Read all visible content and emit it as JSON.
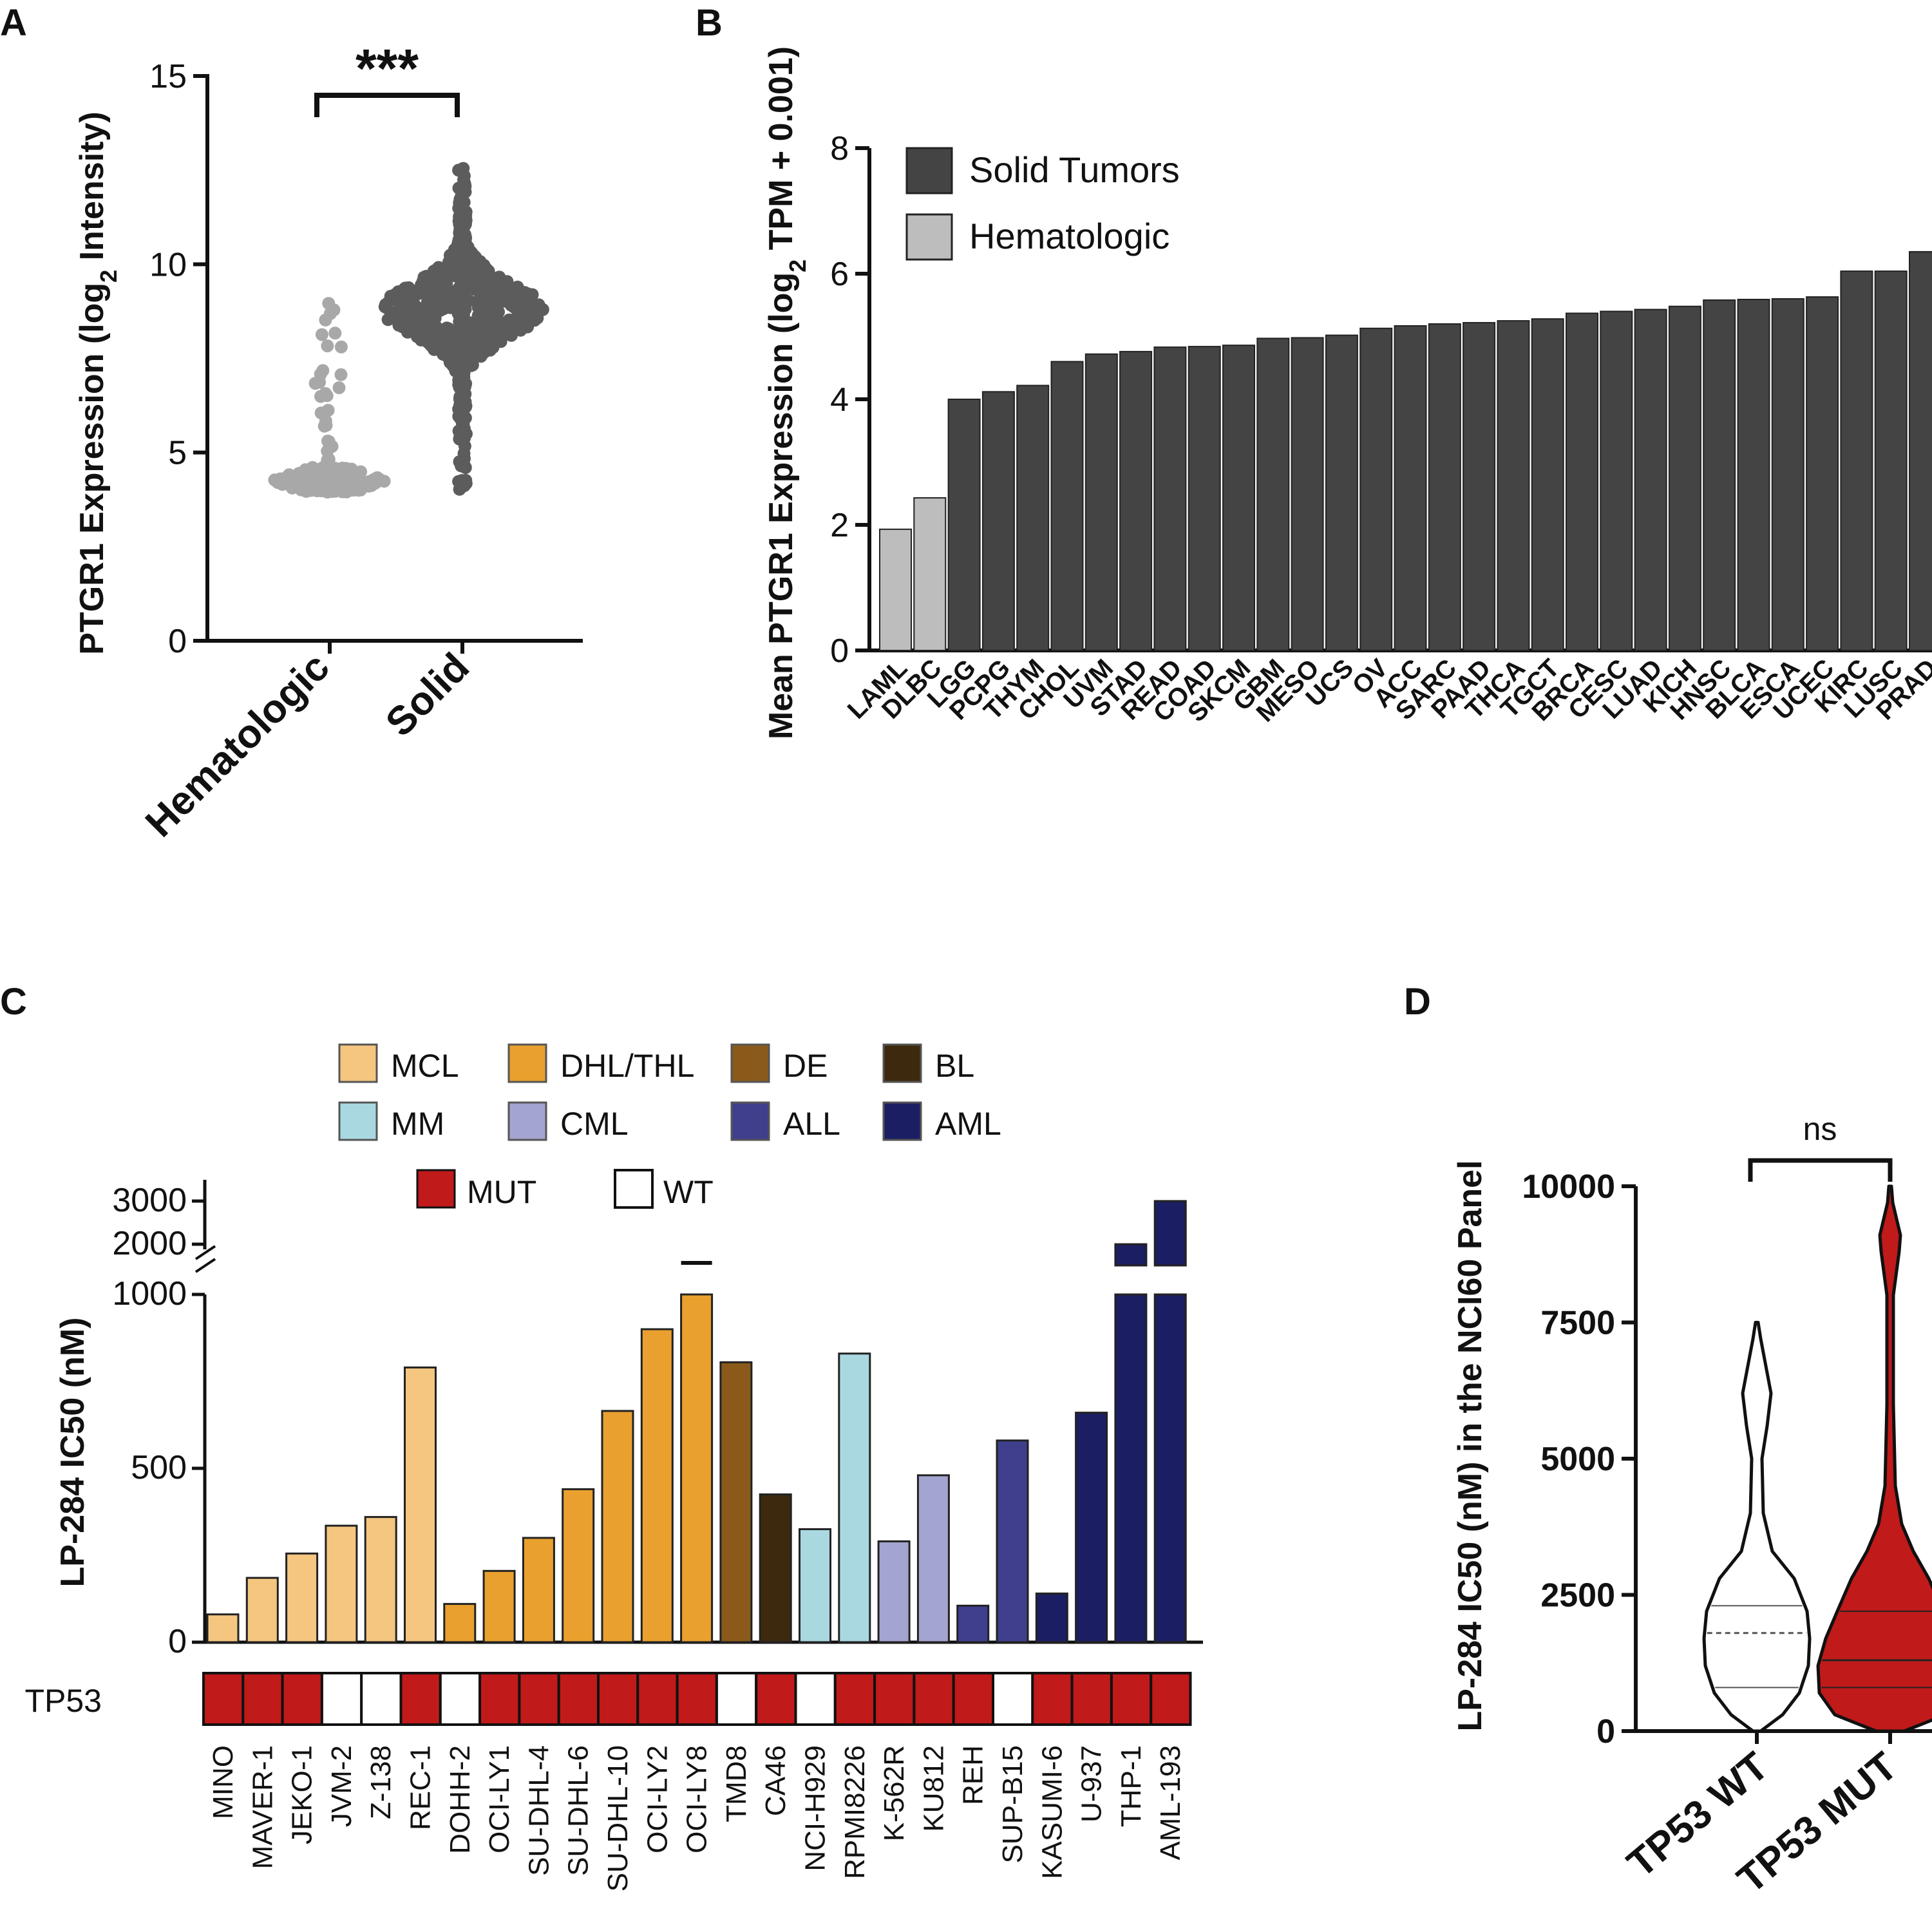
{
  "panels": {
    "A": {
      "label": "A"
    },
    "B": {
      "label": "B"
    },
    "C": {
      "label": "C"
    },
    "D": {
      "label": "D"
    }
  },
  "colors": {
    "hematologic_A": "#a8a8a8",
    "solid_A": "#5c5c5c",
    "solid_B": "#444444",
    "hematologic_B": "#bdbdbd",
    "MCL": "#f5c680",
    "DHL/THL": "#e9a02e",
    "DE": "#8b5a1a",
    "BL": "#3d2a0e",
    "MM": "#a9d8e0",
    "CML": "#a4a4d0",
    "ALL": "#3f3f8e",
    "AML": "#1c1e63",
    "MUT": "#c01a1a",
    "WT": "#ffffff"
  },
  "chart_data": [
    {
      "panel": "A",
      "type": "scatter",
      "title": "",
      "ylabel": "PTGR1 Expression (log",
      "ylabel_sub": "2",
      "ylabel_end": " Intensity)",
      "ylim": [
        0,
        15
      ],
      "yticks": [
        "0",
        "5",
        "10",
        "15"
      ],
      "categories": [
        "Hematologic",
        "Solid"
      ],
      "significance": "***",
      "series": [
        {
          "name": "Hematologic",
          "median": 4.3,
          "min": 3.9,
          "max": 9.4
        },
        {
          "name": "Solid",
          "median": 8.8,
          "min": 3.9,
          "max": 12.6
        }
      ]
    },
    {
      "panel": "B",
      "type": "bar",
      "ylabel": "Mean PTGR1 Expression (log",
      "ylabel_sub": "2",
      "ylabel_end": " TPM + 0.001)",
      "ylim": [
        0,
        8
      ],
      "yticks": [
        "0",
        "2",
        "4",
        "6",
        "8"
      ],
      "legend": [
        "Solid Tumors",
        "Hematologic"
      ],
      "categories": [
        "LAML",
        "DLBC",
        "LGG",
        "PCPG",
        "THYM",
        "CHOL",
        "UVM",
        "STAD",
        "READ",
        "COAD",
        "SKCM",
        "GBM",
        "MESO",
        "UCS",
        "OV",
        "ACC",
        "SARC",
        "PAAD",
        "THCA",
        "TGCT",
        "BRCA",
        "CESC",
        "LUAD",
        "KICH",
        "HNSC",
        "BLCA",
        "ESCA",
        "UCEC",
        "KIRC",
        "LUSC",
        "PRAD"
      ],
      "groups": [
        "Hematologic",
        "Hematologic",
        "Solid",
        "Solid",
        "Solid",
        "Solid",
        "Solid",
        "Solid",
        "Solid",
        "Solid",
        "Solid",
        "Solid",
        "Solid",
        "Solid",
        "Solid",
        "Solid",
        "Solid",
        "Solid",
        "Solid",
        "Solid",
        "Solid",
        "Solid",
        "Solid",
        "Solid",
        "Solid",
        "Solid",
        "Solid",
        "Solid",
        "Solid",
        "Solid",
        "Solid"
      ],
      "values": [
        1.93,
        2.43,
        4.0,
        4.12,
        4.22,
        4.6,
        4.72,
        4.76,
        4.83,
        4.84,
        4.86,
        4.97,
        4.98,
        5.02,
        5.13,
        5.17,
        5.2,
        5.22,
        5.25,
        5.28,
        5.37,
        5.4,
        5.43,
        5.48,
        5.58,
        5.59,
        5.6,
        5.63,
        6.04,
        6.04,
        6.35
      ]
    },
    {
      "panel": "C",
      "type": "bar",
      "ylabel": "LP-284 IC50 (nM)",
      "yticks": [
        "0",
        "500",
        "1000",
        "2000",
        "3000"
      ],
      "broken_axis": [
        1000,
        2000
      ],
      "legend": [
        "MCL",
        "DHL/THL",
        "DE",
        "BL",
        "MM",
        "CML",
        "ALL",
        "AML"
      ],
      "tp53_legend": [
        "MUT",
        "WT"
      ],
      "tp53_label": "TP53",
      "categories": [
        "MINO",
        "MAVER-1",
        "JEKO-1",
        "JVM-2",
        "Z-138",
        "REC-1",
        "DOHH-2",
        "OCI-LY1",
        "SU-DHL-4",
        "SU-DHL-6",
        "SU-DHL-10",
        "OCI-LY2",
        "OCI-LY8",
        "TMD8",
        "CA46",
        "NCI-H929",
        "RPMI8226",
        "K-562R",
        "KU812",
        "REH",
        "SUP-B15",
        "KASUMI-6",
        "U-937",
        "THP-1",
        "AML-193"
      ],
      "groups": [
        "MCL",
        "MCL",
        "MCL",
        "MCL",
        "MCL",
        "MCL",
        "DHL/THL",
        "DHL/THL",
        "DHL/THL",
        "DHL/THL",
        "DHL/THL",
        "DHL/THL",
        "DHL/THL",
        "DE",
        "BL",
        "MM",
        "MM",
        "CML",
        "CML",
        "ALL",
        "ALL",
        "AML",
        "AML",
        "AML",
        "AML"
      ],
      "values": [
        80,
        185,
        255,
        335,
        360,
        790,
        110,
        205,
        300,
        440,
        665,
        900,
        1500,
        805,
        425,
        325,
        830,
        290,
        480,
        105,
        580,
        140,
        660,
        2000,
        3000
      ],
      "tp53": [
        "MUT",
        "MUT",
        "MUT",
        "WT",
        "WT",
        "MUT",
        "WT",
        "MUT",
        "MUT",
        "MUT",
        "MUT",
        "MUT",
        "MUT",
        "WT",
        "MUT",
        "WT",
        "MUT",
        "MUT",
        "MUT",
        "MUT",
        "WT",
        "MUT",
        "MUT",
        "MUT",
        "MUT"
      ]
    },
    {
      "panel": "D",
      "type": "violin",
      "ylabel": "LP-284 IC50 (nM) in the NCI60 Panel",
      "ylim": [
        0,
        10000
      ],
      "yticks": [
        "0",
        "2500",
        "5000",
        "7500",
        "10000"
      ],
      "categories": [
        "TP53 WT",
        "TP53 MUT"
      ],
      "significance": "ns",
      "series": [
        {
          "name": "TP53 WT",
          "q1": 800,
          "median": 1800,
          "q3": 2300,
          "max": 7500
        },
        {
          "name": "TP53 MUT",
          "q1": 800,
          "median": 1300,
          "q3": 2200,
          "max": 10000
        }
      ]
    }
  ]
}
